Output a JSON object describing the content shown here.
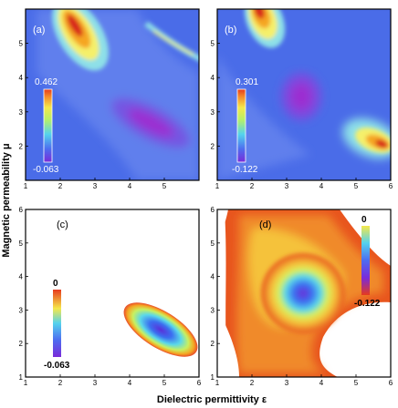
{
  "figure": {
    "ylabel": "Magnetic permeability μ",
    "xlabel": "Dielectric permittivity ε"
  },
  "chart_data": [
    {
      "type": "heatmap",
      "panel_label": "(a)",
      "xlim": [
        1,
        6
      ],
      "ylim": [
        1,
        6
      ],
      "xticks": [
        "1",
        "2",
        "3",
        "4",
        "5"
      ],
      "yticks": [
        "2",
        "3",
        "4",
        "5"
      ],
      "colorscale": [
        "#3b5fe0",
        "#6a88f0",
        "#9fd8f0",
        "#f5f06a",
        "#f5a623",
        "#e84b2a",
        "#c81e1e"
      ],
      "colorbar": {
        "max": "0.462",
        "min": "-0.063"
      },
      "features": [
        {
          "kind": "hot-ridge",
          "from": [
            1.6,
            6.0
          ],
          "to": [
            2.3,
            4.8
          ],
          "value": 0.462
        },
        {
          "kind": "thin-ridge",
          "from": [
            3.8,
            5.8
          ],
          "to": [
            6.0,
            4.6
          ],
          "value": 0.25
        },
        {
          "kind": "trough",
          "center": [
            4.8,
            2.6
          ],
          "value": -0.063
        }
      ]
    },
    {
      "type": "heatmap",
      "panel_label": "(b)",
      "xlim": [
        1,
        6
      ],
      "ylim": [
        1,
        6
      ],
      "xticks": [
        "1",
        "2",
        "3",
        "4",
        "5",
        "6"
      ],
      "yticks": [
        "2",
        "3",
        "4",
        "5"
      ],
      "colorscale": [
        "#3b5fe0",
        "#6a88f0",
        "#9fd8f0",
        "#f5f06a",
        "#f5a623",
        "#e84b2a",
        "#c81e1e"
      ],
      "colorbar": {
        "max": "0.301",
        "min": "-0.122"
      },
      "features": [
        {
          "kind": "hot-ridge",
          "from": [
            1.9,
            6.0
          ],
          "to": [
            2.4,
            5.0
          ],
          "value": 0.301
        },
        {
          "kind": "trough",
          "center": [
            3.4,
            3.6
          ],
          "value": -0.122
        },
        {
          "kind": "hot-spot",
          "center": [
            5.8,
            2.2
          ],
          "value": 0.25
        }
      ]
    },
    {
      "type": "heatmap",
      "panel_label": "(c)",
      "xlim": [
        1,
        6
      ],
      "ylim": [
        1,
        6
      ],
      "xticks": [
        "1",
        "2",
        "3",
        "4",
        "5",
        "6"
      ],
      "yticks": [
        "1",
        "2",
        "3",
        "4",
        "5",
        "6"
      ],
      "colorscale": [
        "#3b5fe0",
        "#9fd8f0",
        "#f5f06a",
        "#f5a623",
        "#e84b2a"
      ],
      "colorbar": {
        "max": "0",
        "min": "-0.063"
      },
      "features": [
        {
          "kind": "masked-ellipse",
          "center": [
            4.8,
            2.6
          ],
          "value": -0.063
        }
      ]
    },
    {
      "type": "heatmap",
      "panel_label": "(d)",
      "xlim": [
        1,
        6
      ],
      "ylim": [
        1,
        6
      ],
      "xticks": [
        "1",
        "2",
        "3",
        "4",
        "5",
        "6"
      ],
      "yticks": [
        "1",
        "2",
        "3",
        "4",
        "5",
        "6"
      ],
      "colorscale": [
        "#3b5fe0",
        "#9fd8f0",
        "#f5f06a",
        "#f5a623",
        "#e84b2a"
      ],
      "colorbar": {
        "max": "0",
        "min": "-0.122"
      },
      "features": [
        {
          "kind": "masked-basin",
          "center": [
            3.4,
            3.6
          ],
          "value": -0.122
        }
      ]
    }
  ]
}
